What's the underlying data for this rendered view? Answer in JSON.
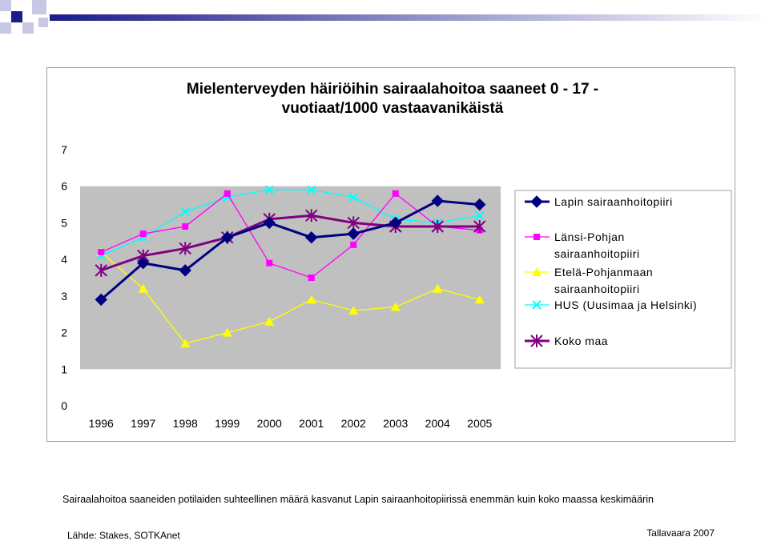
{
  "colors": {
    "plot_background": "#c0c0c0",
    "deco_blue": "#1b1b8a",
    "deco_light": "#c8c8e6"
  },
  "chart_data": {
    "type": "line",
    "title_lines": [
      "Mielenterveyden häiriöihin sairaalahoitoa saaneet 0 - 17 -",
      "vuotiaat/1000 vastaavanikäistä"
    ],
    "x": [
      "1996",
      "1997",
      "1998",
      "1999",
      "2000",
      "2001",
      "2002",
      "2003",
      "2004",
      "2005"
    ],
    "ylim": [
      0,
      7
    ],
    "yticks": [
      "0",
      "1",
      "2",
      "3",
      "4",
      "5",
      "6",
      "7"
    ],
    "grid": false,
    "legend_position": "right",
    "series": [
      {
        "name": "Lapin sairaanhoitopiiri",
        "color": "#000080",
        "marker": "diamond",
        "values": [
          2.9,
          3.9,
          3.7,
          4.6,
          5.0,
          4.6,
          4.7,
          5.0,
          5.6,
          5.5
        ]
      },
      {
        "name": "Länsi-Pohjan sairaanhoitopiiri",
        "color": "#ff00ff",
        "marker": "square",
        "values": [
          4.2,
          4.7,
          4.9,
          5.8,
          3.9,
          3.5,
          4.4,
          5.8,
          4.9,
          4.8
        ]
      },
      {
        "name": "Etelä-Pohjanmaan sairaanhoitopiiri",
        "color": "#ffff00",
        "marker": "triangle",
        "values": [
          4.2,
          3.2,
          1.7,
          2.0,
          2.3,
          2.9,
          2.6,
          2.7,
          3.2,
          2.9
        ]
      },
      {
        "name": "HUS (Uusimaa ja Helsinki)",
        "color": "#00ffff",
        "marker": "x",
        "values": [
          4.1,
          4.6,
          5.3,
          5.7,
          5.9,
          5.9,
          5.7,
          5.1,
          5.0,
          5.2
        ]
      },
      {
        "name": "Koko maa",
        "color": "#800080",
        "marker": "star",
        "values": [
          3.7,
          4.1,
          4.3,
          4.6,
          5.1,
          5.2,
          5.0,
          4.9,
          4.9,
          4.9
        ]
      }
    ],
    "legend_lines": [
      [
        "Lapin sairaanhoitopiiri"
      ],
      [
        "Länsi-Pohjan",
        "sairaanhoitopiiri"
      ],
      [
        "Etelä-Pohjanmaan",
        "sairaanhoitopiiri"
      ],
      [
        "HUS (Uusimaa ja Helsinki)"
      ],
      [
        "Koko maa"
      ]
    ]
  },
  "caption": "Sairaalahoitoa saaneiden potilaiden suhteellinen määrä kasvanut Lapin sairaanhoitopiirissä enemmän kuin koko maassa keskimäärin",
  "source": "Lähde: Stakes, SOTKAnet",
  "organization": "Tallavaara 2007"
}
